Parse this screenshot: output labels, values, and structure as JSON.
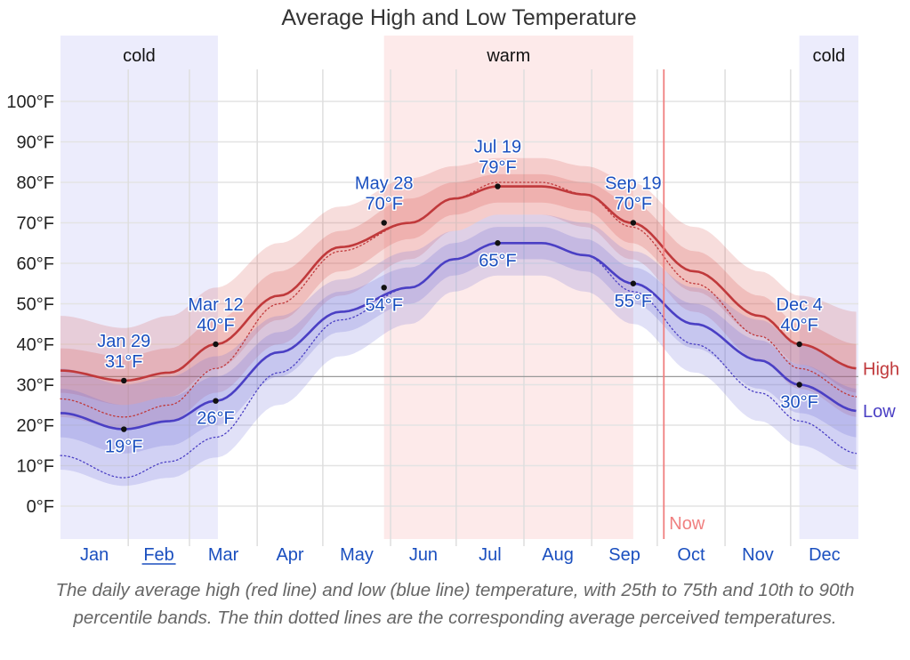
{
  "chart_data": {
    "type": "area",
    "title": "Average High and Low Temperature",
    "xlabel": "",
    "ylabel": "",
    "ylim": [
      -8,
      106
    ],
    "y_ticks": [
      0,
      10,
      20,
      30,
      40,
      50,
      60,
      70,
      80,
      90,
      100
    ],
    "y_tick_labels": [
      "0°F",
      "10°F",
      "20°F",
      "30°F",
      "40°F",
      "50°F",
      "60°F",
      "70°F",
      "80°F",
      "90°F",
      "100°F"
    ],
    "x_range_days": [
      0,
      365
    ],
    "months": [
      "Jan",
      "Feb",
      "Mar",
      "Apr",
      "May",
      "Jun",
      "Jul",
      "Aug",
      "Sep",
      "Oct",
      "Nov",
      "Dec"
    ],
    "month_start_days": [
      0,
      31,
      59,
      90,
      120,
      151,
      181,
      212,
      243,
      273,
      304,
      334
    ],
    "underlined_month": "Feb",
    "freezing_line": 32,
    "grid": true,
    "seasons": [
      {
        "label": "cold",
        "start_day": 0,
        "end_day": 72,
        "color": "#ececfc"
      },
      {
        "label": "warm",
        "start_day": 148,
        "end_day": 262,
        "color": "#fdeaea"
      },
      {
        "label": "cold",
        "start_day": 338,
        "end_day": 365,
        "color": "#ececfc"
      }
    ],
    "now": {
      "label": "Now",
      "day": 276,
      "color": "#f08080"
    },
    "series": [
      {
        "name": "High",
        "color": "#c0393b",
        "band_color": "#d9534f",
        "days": [
          0,
          29,
          50,
          71,
          100,
          128,
          160,
          180,
          200,
          220,
          240,
          261,
          290,
          320,
          338,
          365
        ],
        "values": [
          33.5,
          31,
          33,
          40,
          52,
          64,
          70,
          76,
          79,
          79,
          77,
          70,
          58,
          47,
          40,
          34
        ],
        "p25": [
          28,
          25,
          27,
          34,
          46,
          58,
          66,
          72,
          75,
          75,
          73,
          65,
          53,
          42,
          35,
          28
        ],
        "p75": [
          39,
          37,
          39,
          46,
          58,
          68,
          76,
          80,
          82,
          82,
          80,
          75,
          63,
          52,
          45,
          40
        ],
        "p10": [
          22,
          19,
          21,
          28,
          40,
          52,
          61,
          68,
          72,
          72,
          69,
          61,
          48,
          36,
          29,
          22
        ],
        "p90": [
          47,
          44,
          47,
          54,
          65,
          74,
          81,
          84,
          86,
          86,
          84,
          80,
          69,
          58,
          52,
          48
        ],
        "feels": [
          26.5,
          22,
          25,
          34,
          50,
          63,
          70,
          76,
          80,
          80,
          77,
          69,
          55,
          42,
          34,
          27
        ]
      },
      {
        "name": "Low",
        "color": "#4a3fc4",
        "band_color": "#6a6ad8",
        "days": [
          0,
          29,
          50,
          71,
          100,
          128,
          160,
          180,
          200,
          220,
          240,
          262,
          290,
          320,
          338,
          365
        ],
        "values": [
          23,
          19,
          21,
          26,
          38,
          48,
          54,
          61,
          65,
          65,
          62,
          55,
          45,
          36,
          30,
          23.5
        ],
        "p25": [
          17,
          13,
          15,
          20,
          32,
          43,
          50,
          57,
          61,
          61,
          58,
          50,
          39,
          29,
          23,
          17
        ],
        "p75": [
          29,
          25,
          27,
          32,
          43,
          53,
          59,
          65,
          69,
          69,
          66,
          59,
          50,
          41,
          35,
          29
        ],
        "p10": [
          9,
          5,
          7,
          12,
          25,
          37,
          45,
          53,
          57,
          57,
          53,
          45,
          33,
          21,
          15,
          9
        ],
        "p90": [
          34,
          30,
          32,
          37,
          47,
          56,
          63,
          68,
          72,
          72,
          70,
          63,
          54,
          46,
          40,
          34
        ],
        "feels": [
          12.5,
          7,
          11,
          17,
          33,
          46,
          54,
          61,
          65,
          65,
          62,
          53,
          40,
          28,
          21,
          13
        ]
      }
    ],
    "annotations": [
      {
        "series": "High",
        "day": 29,
        "value": 31,
        "date": "Jan 29",
        "temp": "31°F",
        "position": "above"
      },
      {
        "series": "Low",
        "day": 29,
        "value": 19,
        "date": "",
        "temp": "19°F",
        "position": "below"
      },
      {
        "series": "High",
        "day": 71,
        "value": 40,
        "date": "Mar 12",
        "temp": "40°F",
        "position": "above"
      },
      {
        "series": "Low",
        "day": 71,
        "value": 26,
        "date": "",
        "temp": "26°F",
        "position": "below"
      },
      {
        "series": "High",
        "day": 148,
        "value": 70,
        "date": "May 28",
        "temp": "70°F",
        "position": "above"
      },
      {
        "series": "Low",
        "day": 148,
        "value": 54,
        "date": "",
        "temp": "54°F",
        "position": "below"
      },
      {
        "series": "High",
        "day": 200,
        "value": 79,
        "date": "Jul 19",
        "temp": "79°F",
        "position": "above"
      },
      {
        "series": "Low",
        "day": 200,
        "value": 65,
        "date": "",
        "temp": "65°F",
        "position": "below"
      },
      {
        "series": "High",
        "day": 262,
        "value": 70,
        "date": "Sep 19",
        "temp": "70°F",
        "position": "above"
      },
      {
        "series": "Low",
        "day": 262,
        "value": 55,
        "date": "",
        "temp": "55°F",
        "position": "below"
      },
      {
        "series": "High",
        "day": 338,
        "value": 40,
        "date": "Dec 4",
        "temp": "40°F",
        "position": "above"
      },
      {
        "series": "Low",
        "day": 338,
        "value": 30,
        "date": "",
        "temp": "30°F",
        "position": "below"
      }
    ],
    "legend": {
      "placement": "right",
      "entries": [
        "High",
        "Low"
      ]
    }
  },
  "caption": "The daily average high (red line) and low (blue line) temperature, with 25th to 75th and 10th to 90th percentile bands. The thin dotted lines are the corresponding average perceived temperatures."
}
